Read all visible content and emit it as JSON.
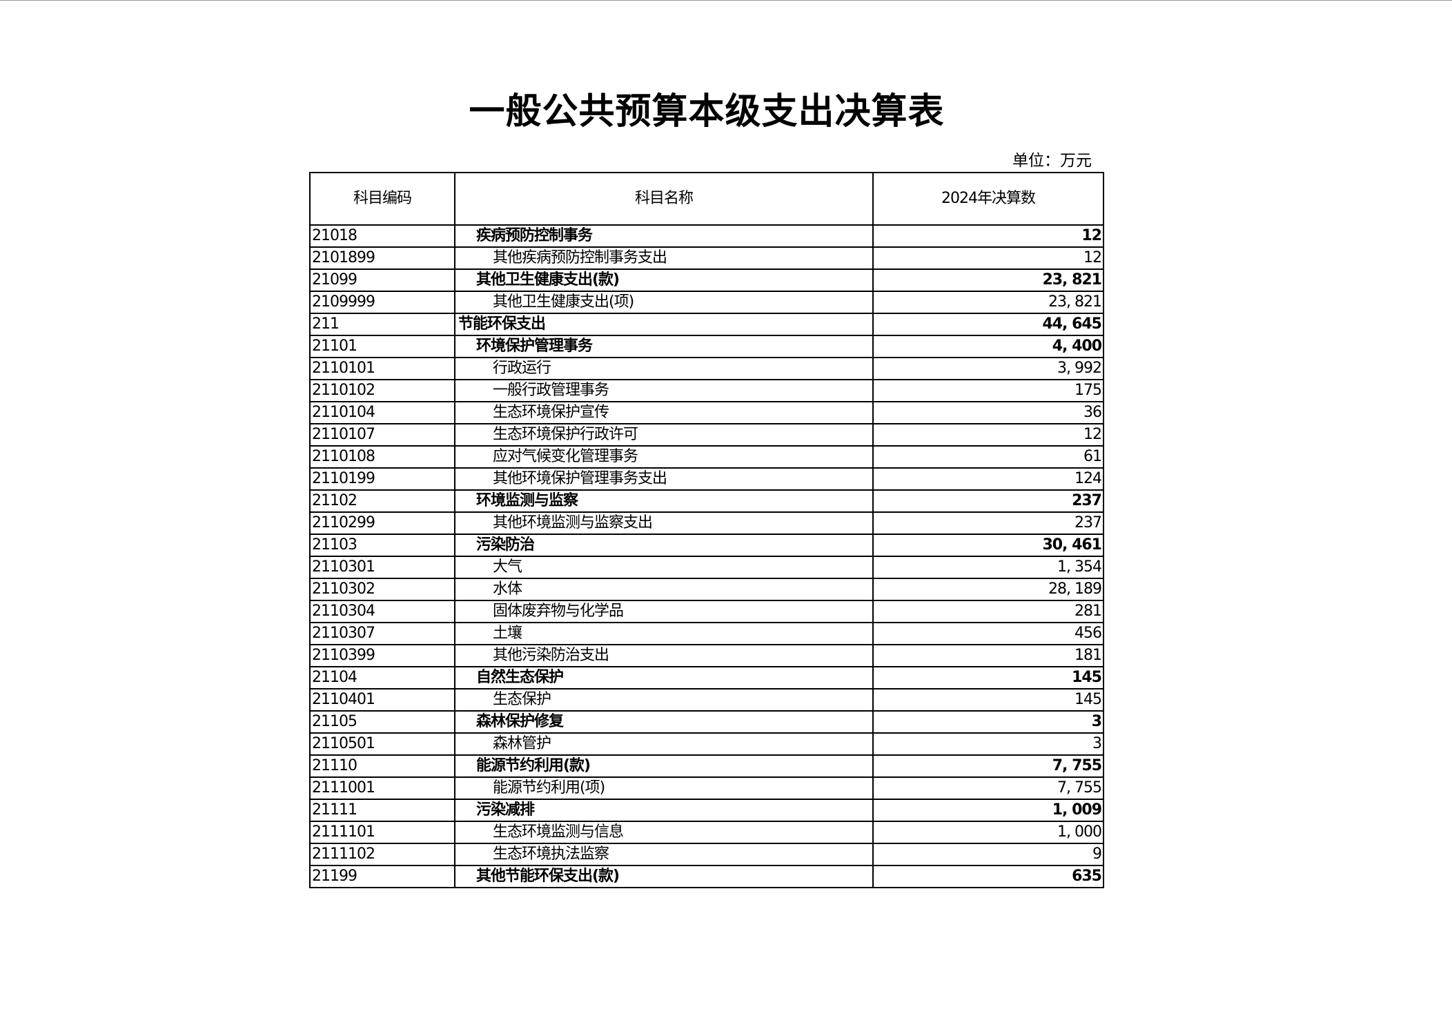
{
  "title": "一般公共预算本级支出决算表",
  "unit": "单位：万元",
  "columns": [
    "科目编码",
    "科目名称",
    "2024年决算数"
  ],
  "rows": [
    {
      "code": "21018",
      "name": "疾病预防控制事务",
      "value": "12",
      "level": 2,
      "bold": true
    },
    {
      "code": "2101899",
      "name": "其他疾病预防控制事务支出",
      "value": "12",
      "level": 3,
      "bold": false
    },
    {
      "code": "21099",
      "name": "其他卫生健康支出(款)",
      "value": "23, 821",
      "level": 2,
      "bold": true
    },
    {
      "code": "2109999",
      "name": "其他卫生健康支出(项)",
      "value": "23, 821",
      "level": 3,
      "bold": false
    },
    {
      "code": "211",
      "name": "节能环保支出",
      "value": "44, 645",
      "level": 1,
      "bold": true
    },
    {
      "code": "21101",
      "name": "环境保护管理事务",
      "value": "4, 400",
      "level": 2,
      "bold": true
    },
    {
      "code": "2110101",
      "name": "行政运行",
      "value": "3, 992",
      "level": 3,
      "bold": false
    },
    {
      "code": "2110102",
      "name": "一般行政管理事务",
      "value": "175",
      "level": 3,
      "bold": false
    },
    {
      "code": "2110104",
      "name": "生态环境保护宣传",
      "value": "36",
      "level": 3,
      "bold": false
    },
    {
      "code": "2110107",
      "name": "生态环境保护行政许可",
      "value": "12",
      "level": 3,
      "bold": false
    },
    {
      "code": "2110108",
      "name": "应对气候变化管理事务",
      "value": "61",
      "level": 3,
      "bold": false
    },
    {
      "code": "2110199",
      "name": "其他环境保护管理事务支出",
      "value": "124",
      "level": 3,
      "bold": false
    },
    {
      "code": "21102",
      "name": "环境监测与监察",
      "value": "237",
      "level": 2,
      "bold": true
    },
    {
      "code": "2110299",
      "name": "其他环境监测与监察支出",
      "value": "237",
      "level": 3,
      "bold": false
    },
    {
      "code": "21103",
      "name": "污染防治",
      "value": "30, 461",
      "level": 2,
      "bold": true
    },
    {
      "code": "2110301",
      "name": "大气",
      "value": "1, 354",
      "level": 3,
      "bold": false
    },
    {
      "code": "2110302",
      "name": "水体",
      "value": "28, 189",
      "level": 3,
      "bold": false
    },
    {
      "code": "2110304",
      "name": "固体废弃物与化学品",
      "value": "281",
      "level": 3,
      "bold": false
    },
    {
      "code": "2110307",
      "name": "土壤",
      "value": "456",
      "level": 3,
      "bold": false
    },
    {
      "code": "2110399",
      "name": "其他污染防治支出",
      "value": "181",
      "level": 3,
      "bold": false
    },
    {
      "code": "21104",
      "name": "自然生态保护",
      "value": "145",
      "level": 2,
      "bold": true
    },
    {
      "code": "2110401",
      "name": "生态保护",
      "value": "145",
      "level": 3,
      "bold": false
    },
    {
      "code": "21105",
      "name": "森林保护修复",
      "value": "3",
      "level": 2,
      "bold": true
    },
    {
      "code": "2110501",
      "name": "森林管护",
      "value": "3",
      "level": 3,
      "bold": false
    },
    {
      "code": "21110",
      "name": "能源节约利用(款)",
      "value": "7, 755",
      "level": 2,
      "bold": true
    },
    {
      "code": "2111001",
      "name": "能源节约利用(项)",
      "value": "7, 755",
      "level": 3,
      "bold": false
    },
    {
      "code": "21111",
      "name": "污染减排",
      "value": "1, 009",
      "level": 2,
      "bold": true
    },
    {
      "code": "2111101",
      "name": "生态环境监测与信息",
      "value": "1, 000",
      "level": 3,
      "bold": false
    },
    {
      "code": "2111102",
      "name": "生态环境执法监察",
      "value": "9",
      "level": 3,
      "bold": false
    },
    {
      "code": "21199",
      "name": "其他节能环保支出(款)",
      "value": "635",
      "level": 2,
      "bold": true
    }
  ]
}
